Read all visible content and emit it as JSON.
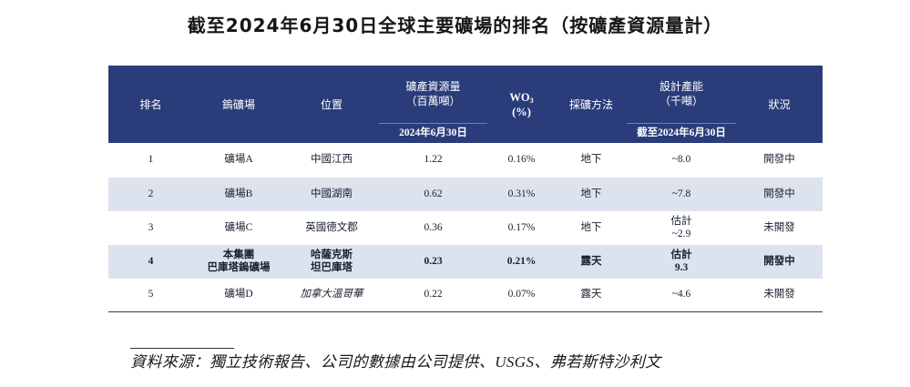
{
  "title": "截至2024年6月30日全球主要礦場的排名（按礦產資源量計）",
  "table": {
    "header": {
      "rank": "排名",
      "mine": "鎢礦場",
      "location": "位置",
      "resources": "礦產資源量",
      "resources_unit": "（百萬噸）",
      "resources_date": "2024年6月30日",
      "grade": "WO",
      "grade_sub": "3",
      "grade_unit": "(%)",
      "method": "採礦方法",
      "capacity": "設計產能",
      "capacity_unit": "（千噸）",
      "capacity_date": "截至2024年6月30日",
      "status": "狀況"
    },
    "rows": [
      {
        "rank": "1",
        "mine": [
          "礦場A"
        ],
        "location": [
          "中國江西"
        ],
        "resources": "1.22",
        "grade": "0.16%",
        "method": "地下",
        "capacity": [
          "~8.0"
        ],
        "status": "開發中"
      },
      {
        "rank": "2",
        "mine": [
          "礦場B"
        ],
        "location": [
          "中國湖南"
        ],
        "resources": "0.62",
        "grade": "0.31%",
        "method": "地下",
        "capacity": [
          "~7.8"
        ],
        "status": "開發中"
      },
      {
        "rank": "3",
        "mine": [
          "礦場C"
        ],
        "location": [
          "英國德文郡"
        ],
        "resources": "0.36",
        "grade": "0.17%",
        "method": "地下",
        "capacity": [
          "估計",
          "~2.9"
        ],
        "status": "未開發"
      },
      {
        "rank": "4",
        "mine": [
          "本集團",
          "巴庫塔鎢礦場"
        ],
        "location": [
          "哈薩克斯",
          "坦巴庫塔"
        ],
        "resources": "0.23",
        "grade": "0.21%",
        "method": "露天",
        "capacity": [
          "估計",
          "9.3"
        ],
        "status": "開發中"
      },
      {
        "rank": "5",
        "mine": [
          "礦場D"
        ],
        "location": [
          "加拿大溫哥華"
        ],
        "resources": "0.22",
        "grade": "0.07%",
        "method": "露天",
        "capacity": [
          "~4.6"
        ],
        "status": "未開發"
      }
    ]
  },
  "source": "資料來源：獨立技術報告、公司的數據由公司提供、USGS、弗若斯特沙利文",
  "colors": {
    "header_bg": "#2a3d7a",
    "band_bg": "#dde3ee",
    "text": "#1a1f2e"
  }
}
